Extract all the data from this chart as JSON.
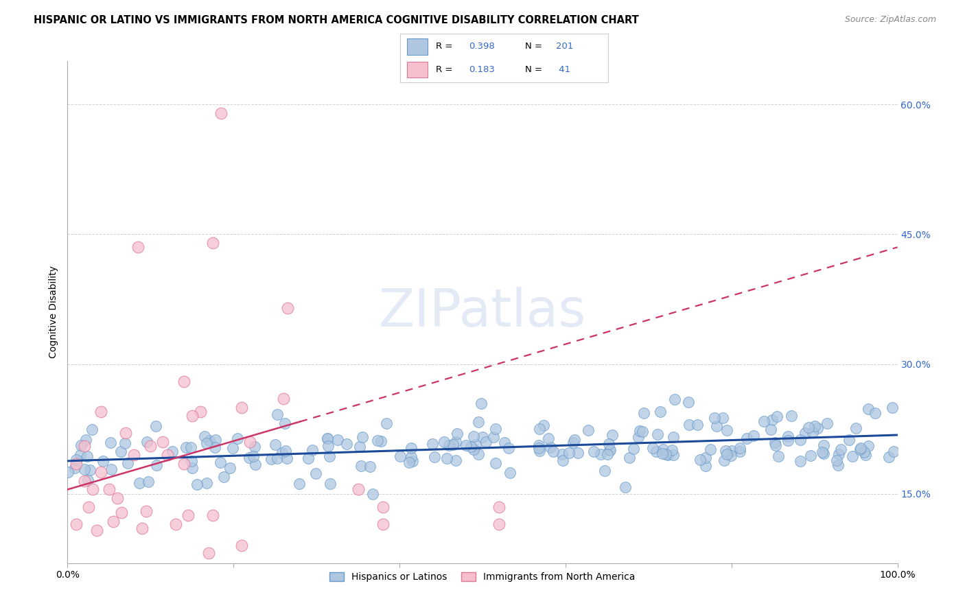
{
  "title": "HISPANIC OR LATINO VS IMMIGRANTS FROM NORTH AMERICA COGNITIVE DISABILITY CORRELATION CHART",
  "source": "Source: ZipAtlas.com",
  "ylabel": "Cognitive Disability",
  "title_fontsize": 10.5,
  "source_fontsize": 9,
  "blue_R": 0.398,
  "blue_N": 201,
  "pink_R": 0.183,
  "pink_N": 41,
  "blue_color": "#aec6df",
  "blue_edge": "#6699cc",
  "pink_color": "#f5bfce",
  "pink_edge": "#e07898",
  "blue_line_color": "#1a4a99",
  "pink_line_color": "#cc3366",
  "legend_color": "#3366cc",
  "right_ytick_color": "#3366cc",
  "xlim": [
    0.0,
    1.0
  ],
  "ylim": [
    0.07,
    0.65
  ],
  "right_yticks": [
    0.15,
    0.3,
    0.45,
    0.6
  ],
  "right_yticklabels": [
    "15.0%",
    "30.0%",
    "45.0%",
    "60.0%"
  ],
  "xticks": [
    0.0,
    0.2,
    0.4,
    0.6,
    0.8,
    1.0
  ],
  "xticklabels": [
    "0.0%",
    "",
    "",
    "",
    "",
    "100.0%"
  ],
  "watermark": "ZIPatlas",
  "legend_label_blue": "Hispanics or Latinos",
  "legend_label_pink": "Immigrants from North America",
  "blue_intercept": 0.188,
  "blue_slope": 0.03,
  "pink_intercept": 0.155,
  "pink_slope": 0.28
}
